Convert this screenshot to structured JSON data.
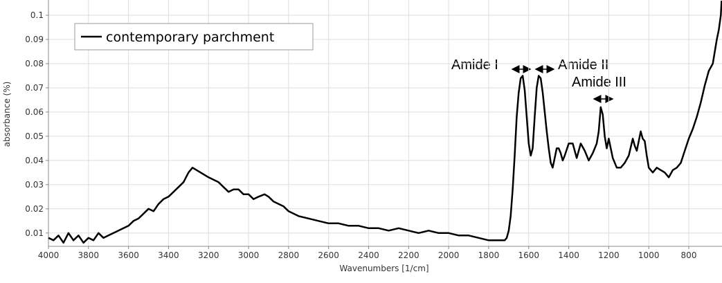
{
  "chart_data": {
    "type": "line",
    "xlabel": "Wavenumbers [1/cm]",
    "ylabel": "absorbance (%)",
    "xlim": [
      4000,
      634
    ],
    "ylim": [
      0.0045,
      0.1063
    ],
    "xticks": [
      4000,
      3800,
      3600,
      3400,
      3200,
      3000,
      2800,
      2600,
      2400,
      2200,
      2000,
      1800,
      1600,
      1400,
      1200,
      1000,
      800
    ],
    "yticks": [
      0.01,
      0.02,
      0.03,
      0.04,
      0.05,
      0.06,
      0.07,
      0.08,
      0.09,
      0.1
    ],
    "grid": true,
    "legend": "upper left",
    "x": [
      4000,
      3975,
      3950,
      3925,
      3900,
      3875,
      3850,
      3825,
      3800,
      3775,
      3750,
      3725,
      3700,
      3675,
      3650,
      3625,
      3600,
      3575,
      3550,
      3525,
      3500,
      3475,
      3450,
      3425,
      3400,
      3375,
      3350,
      3325,
      3300,
      3280,
      3260,
      3240,
      3220,
      3200,
      3175,
      3150,
      3125,
      3100,
      3075,
      3050,
      3025,
      3000,
      2975,
      2950,
      2920,
      2900,
      2875,
      2850,
      2825,
      2800,
      2775,
      2750,
      2700,
      2650,
      2600,
      2550,
      2500,
      2450,
      2400,
      2350,
      2300,
      2250,
      2200,
      2150,
      2100,
      2050,
      2000,
      1950,
      1900,
      1850,
      1800,
      1760,
      1740,
      1720,
      1710,
      1700,
      1690,
      1680,
      1670,
      1660,
      1650,
      1640,
      1630,
      1620,
      1610,
      1600,
      1590,
      1580,
      1570,
      1560,
      1550,
      1540,
      1530,
      1520,
      1510,
      1500,
      1490,
      1480,
      1470,
      1460,
      1450,
      1440,
      1430,
      1420,
      1400,
      1380,
      1360,
      1340,
      1320,
      1300,
      1280,
      1260,
      1250,
      1240,
      1230,
      1220,
      1210,
      1200,
      1190,
      1180,
      1160,
      1140,
      1120,
      1100,
      1080,
      1070,
      1060,
      1040,
      1030,
      1020,
      1010,
      1000,
      980,
      960,
      940,
      920,
      900,
      880,
      860,
      840,
      820,
      800,
      780,
      760,
      740,
      720,
      700,
      680,
      670,
      660,
      650,
      640,
      636
    ],
    "series": [
      {
        "name": "contemporary parchment",
        "color": "#000000",
        "values": [
          0.008,
          0.007,
          0.009,
          0.006,
          0.01,
          0.007,
          0.009,
          0.006,
          0.008,
          0.007,
          0.01,
          0.008,
          0.009,
          0.01,
          0.011,
          0.012,
          0.013,
          0.015,
          0.016,
          0.018,
          0.02,
          0.019,
          0.022,
          0.024,
          0.025,
          0.027,
          0.029,
          0.031,
          0.035,
          0.037,
          0.036,
          0.035,
          0.034,
          0.033,
          0.032,
          0.031,
          0.029,
          0.027,
          0.028,
          0.028,
          0.026,
          0.026,
          0.024,
          0.025,
          0.026,
          0.025,
          0.023,
          0.022,
          0.021,
          0.019,
          0.018,
          0.017,
          0.016,
          0.015,
          0.014,
          0.014,
          0.013,
          0.013,
          0.012,
          0.012,
          0.011,
          0.012,
          0.011,
          0.01,
          0.011,
          0.01,
          0.01,
          0.009,
          0.009,
          0.008,
          0.007,
          0.007,
          0.007,
          0.007,
          0.008,
          0.011,
          0.017,
          0.028,
          0.042,
          0.058,
          0.068,
          0.074,
          0.075,
          0.069,
          0.058,
          0.047,
          0.042,
          0.045,
          0.058,
          0.07,
          0.075,
          0.074,
          0.068,
          0.06,
          0.052,
          0.045,
          0.039,
          0.037,
          0.041,
          0.045,
          0.045,
          0.043,
          0.04,
          0.042,
          0.047,
          0.047,
          0.041,
          0.047,
          0.044,
          0.04,
          0.043,
          0.047,
          0.052,
          0.062,
          0.059,
          0.05,
          0.045,
          0.049,
          0.045,
          0.041,
          0.037,
          0.037,
          0.039,
          0.042,
          0.049,
          0.046,
          0.044,
          0.052,
          0.049,
          0.048,
          0.042,
          0.037,
          0.035,
          0.037,
          0.036,
          0.035,
          0.033,
          0.036,
          0.037,
          0.039,
          0.044,
          0.049,
          0.053,
          0.058,
          0.064,
          0.071,
          0.077,
          0.08,
          0.085,
          0.09,
          0.094,
          0.1,
          0.106
        ]
      }
    ]
  },
  "annotations": [
    "Amide I",
    "Amide II",
    "Amide III"
  ]
}
